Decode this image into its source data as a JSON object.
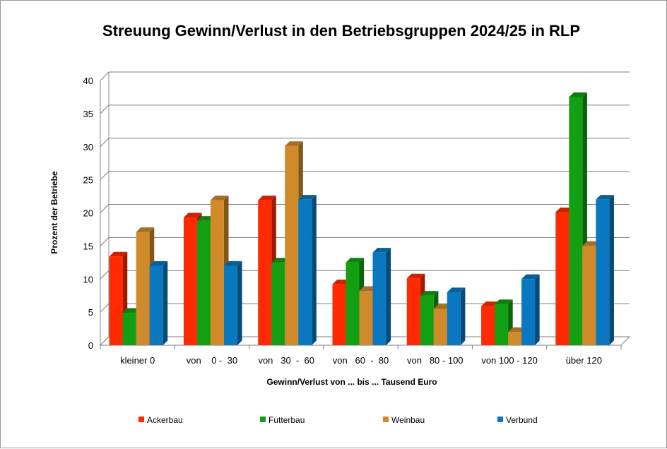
{
  "chart_data": {
    "type": "bar",
    "title": "Streuung Gewinn/Verlust in den Betriebsgruppen 2024/25 in RLP",
    "xlabel": "Gewinn/Verlust von ... bis ... Tausend Euro",
    "ylabel": "Prozent der Betriebe",
    "ylim": [
      0,
      40
    ],
    "yticks": [
      0,
      5,
      10,
      15,
      20,
      25,
      30,
      35,
      40
    ],
    "grid": true,
    "legend_position": "bottom",
    "categories": [
      "kleiner 0",
      "von    0 -  30",
      "von   30  -  60",
      "von   60  -  80",
      "von   80 - 100",
      "von 100 - 120",
      "über 120"
    ],
    "series": [
      {
        "name": "Ackerbau",
        "color": "#ff2a00",
        "values": [
          13.4,
          19.3,
          21.9,
          9.2,
          10.1,
          5.9,
          20.1
        ]
      },
      {
        "name": "Futterbau",
        "color": "#12a012",
        "values": [
          4.9,
          18.8,
          12.5,
          12.5,
          7.5,
          6.2,
          37.5
        ]
      },
      {
        "name": "Weinbau",
        "color": "#d08a2a",
        "values": [
          17.1,
          21.9,
          30.1,
          8.2,
          5.5,
          2.0,
          15.0
        ]
      },
      {
        "name": "Verbund",
        "color": "#0a78c0",
        "values": [
          12.0,
          12.0,
          22.0,
          14.0,
          8.0,
          10.0,
          22.0
        ]
      }
    ]
  }
}
